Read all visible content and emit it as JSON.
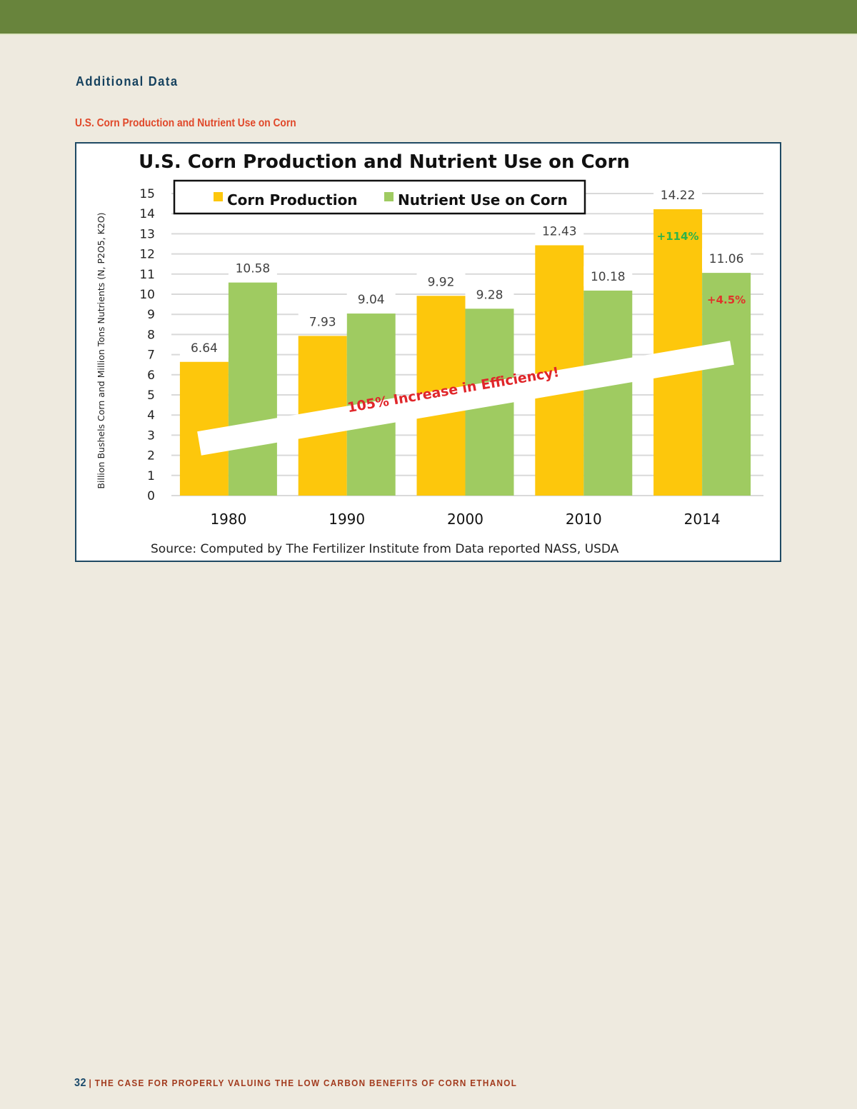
{
  "page": {
    "section_heading": "Additional Data",
    "chart_caption": "U.S. Corn Production and Nutrient Use on Corn",
    "footer": {
      "page_number": "32",
      "separator": "|",
      "document_title": "THE CASE FOR PROPERLY VALUING THE LOW CARBON BENEFITS OF CORN ETHANOL"
    },
    "colors": {
      "header_band": "#68843c",
      "background": "#eeeadf",
      "heading": "#15415e",
      "caption": "#e0482a",
      "footer_title": "#a23a1d"
    }
  },
  "chart_data": {
    "type": "bar",
    "title": "U.S. Corn Production and Nutrient Use on Corn",
    "xlabel": "",
    "ylabel": "Billion Bushels Corn and Million Tons Nutrients (N, P2O5, K2O)",
    "ylim": [
      0,
      15
    ],
    "yticks": [
      0,
      1,
      2,
      3,
      4,
      5,
      6,
      7,
      8,
      9,
      10,
      11,
      12,
      13,
      14,
      15
    ],
    "grid": true,
    "legend_position": "top",
    "categories": [
      "1980",
      "1990",
      "2000",
      "2010",
      "2014"
    ],
    "series": [
      {
        "name": "Corn Production",
        "color": "#fdc70c",
        "values": [
          6.64,
          7.93,
          9.92,
          12.43,
          14.22
        ]
      },
      {
        "name": "Nutrient Use on Corn",
        "color": "#9fcb61",
        "values": [
          10.58,
          9.04,
          9.28,
          10.18,
          11.06
        ]
      }
    ],
    "annotations": [
      {
        "text": "+114%",
        "series": "Corn Production",
        "category": "2014",
        "color": "#2fb34a"
      },
      {
        "text": "+4.5%",
        "series": "Nutrient Use on Corn",
        "category": "2014",
        "color": "#e0342a"
      },
      {
        "text": "105% Increase in Efficiency!",
        "color": "#e0262a",
        "style": "diagonal banner"
      }
    ],
    "source": "Source: Computed by The Fertilizer Institute from Data reported NASS, USDA"
  }
}
